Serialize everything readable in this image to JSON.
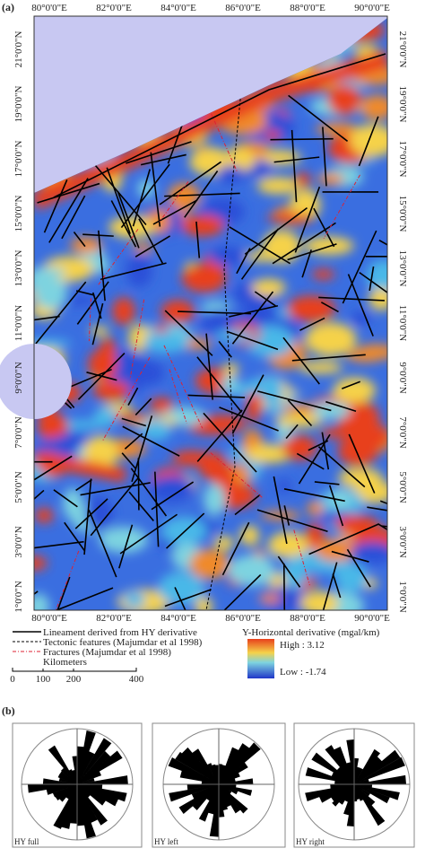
{
  "panel_a": {
    "label": "(a)",
    "lon_labels": [
      "80°0'0\"E",
      "82°0'0\"E",
      "84°0'0\"E",
      "86°0'0\"E",
      "88°0'0\"E",
      "90°0'0\"E"
    ],
    "lat_labels": [
      "21°0'0\"N",
      "19°0'0\"N",
      "17°0'0\"N",
      "15°0'0\"N",
      "13°0'0\"N",
      "11°0'0\"N",
      "9°0'0\"N",
      "7°0'0\"N",
      "5°0'0\"N",
      "3°0'0\"N",
      "1°0'0\"N"
    ],
    "legend": [
      "Lineament derived from HY derivative",
      "Tectonic features (Majumdar et al 1998)",
      "Fractures (Majumdar et al 1998)"
    ],
    "scale_bar": {
      "title": "Kilometers",
      "labels": [
        "0",
        "100",
        "200",
        "400"
      ]
    },
    "colorbar": {
      "title": "Y-Horizontal derivative (mgal/km)",
      "high": "High : 3.12",
      "low": "Low : -1.74"
    }
  },
  "panel_b": {
    "label": "(b)",
    "roses": [
      "HY full",
      "HY left",
      "HY right"
    ]
  }
}
